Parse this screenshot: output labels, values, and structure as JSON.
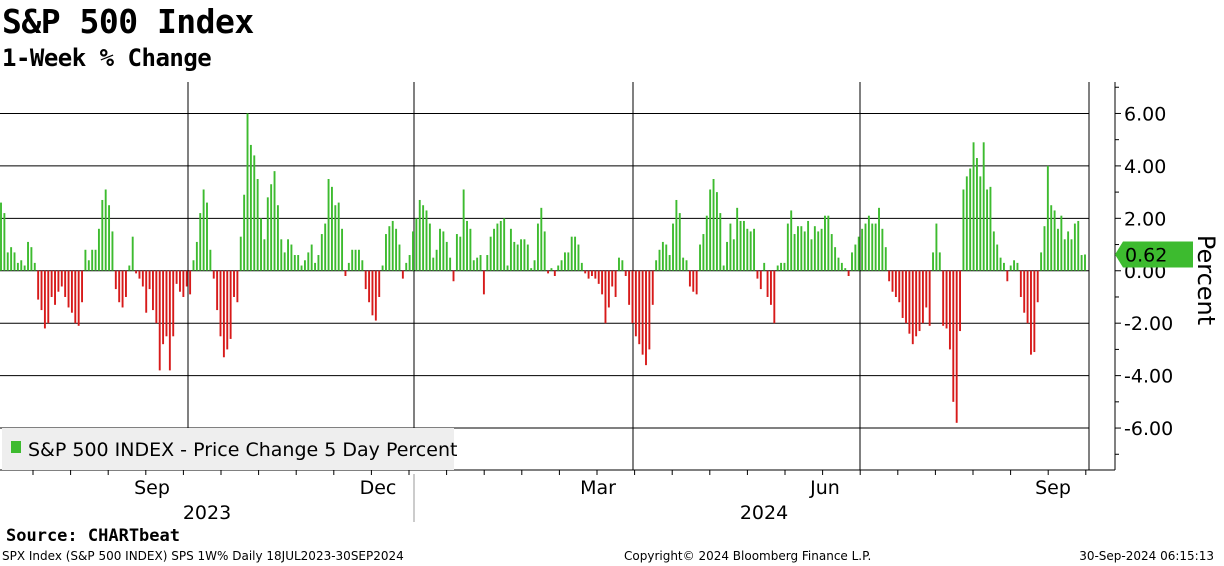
{
  "header": {
    "title": "S&P 500 Index",
    "subtitle": "1-Week % Change"
  },
  "footer": {
    "source": "Source:  CHARTbeat",
    "left": "SPX Index (S&P 500 INDEX) SPS 1W%  Daily 18JUL2023-30SEP2024",
    "middle": "Copyright© 2024 Bloomberg Finance L.P.",
    "right": "30-Sep-2024 06:15:13"
  },
  "colors": {
    "positive": "#3dbb2f",
    "negative": "#d71a1a",
    "grid": "#000000",
    "legend_bg": "#eeeeee",
    "badge": "#3dbb2f"
  },
  "chart_data": {
    "type": "bar",
    "ylabel": "Percent",
    "ylim": [
      -7.6,
      7.2
    ],
    "y_ticks": [
      6.0,
      4.0,
      2.0,
      0.0,
      -2.0,
      -4.0,
      -6.0
    ],
    "y_tick_labels": [
      "6.00",
      "4.00",
      "2.00",
      "0.00",
      "-2.00",
      "-4.00",
      "-6.00"
    ],
    "x_tick_labels": [
      "Sep",
      "Dec",
      "Mar",
      "Jun",
      "Sep"
    ],
    "year_labels": [
      "2023",
      "2024"
    ],
    "legend": [
      "S&P 500 INDEX - Price Change 5 Day Percent"
    ],
    "legend_position": "bottom-left",
    "last_value": "0.62",
    "series": [
      {
        "name": "S&P 500 INDEX - Price Change 5 Day Percent",
        "values": [
          2.6,
          2.2,
          0.7,
          0.9,
          0.7,
          0.3,
          0.4,
          0.2,
          1.1,
          0.9,
          0.3,
          -1.1,
          -1.5,
          -2.2,
          -2.0,
          -1.0,
          -1.3,
          -0.8,
          -0.6,
          -1.0,
          -1.4,
          -1.6,
          -2.0,
          -2.1,
          -1.2,
          0.8,
          0.4,
          0.8,
          0.8,
          1.6,
          2.7,
          3.1,
          2.5,
          1.5,
          -0.7,
          -1.2,
          -1.4,
          -1.0,
          0.2,
          1.3,
          -0.1,
          -0.3,
          -0.6,
          -1.6,
          -0.7,
          -1.5,
          -2.0,
          -3.8,
          -2.8,
          -2.5,
          -3.8,
          -2.5,
          -0.5,
          -0.8,
          -1.0,
          -0.6,
          -0.9,
          0.4,
          1.1,
          2.2,
          3.1,
          2.6,
          0.8,
          -0.3,
          -1.5,
          -2.5,
          -3.3,
          -3.0,
          -2.6,
          -1.0,
          -1.2,
          1.3,
          2.9,
          6.0,
          4.8,
          4.4,
          3.5,
          2.0,
          1.2,
          2.8,
          3.3,
          3.8,
          2.5,
          1.2,
          0.7,
          1.2,
          1.0,
          0.6,
          0.6,
          0.2,
          0.4,
          0.7,
          1.0,
          0.3,
          0.6,
          1.4,
          1.8,
          3.5,
          3.2,
          2.5,
          2.6,
          1.6,
          -0.2,
          0.3,
          0.8,
          0.8,
          0.8,
          0.4,
          -0.7,
          -1.2,
          -1.7,
          -1.9,
          -1.0,
          0.2,
          1.4,
          1.7,
          1.9,
          1.6,
          1.0,
          -0.3,
          0.3,
          0.6,
          1.5,
          2.0,
          2.7,
          2.5,
          2.3,
          1.8,
          0.5,
          0.8,
          1.6,
          1.5,
          1.1,
          0.5,
          -0.4,
          1.4,
          1.3,
          3.1,
          1.9,
          1.6,
          0.4,
          0.5,
          0.6,
          -0.9,
          0.6,
          1.3,
          1.6,
          1.8,
          1.9,
          2.0,
          0.2,
          1.6,
          1.1,
          1.0,
          1.2,
          1.2,
          1.0,
          0.1,
          0.4,
          1.8,
          2.4,
          1.5,
          -0.1,
          0.1,
          -0.2,
          0.2,
          0.4,
          0.7,
          0.7,
          1.3,
          1.3,
          1.0,
          0.3,
          -0.1,
          -0.3,
          -0.2,
          -0.3,
          -0.5,
          -0.9,
          -2.0,
          -1.4,
          -0.6,
          -1.0,
          0.5,
          0.4,
          -0.2,
          -1.3,
          -2.0,
          -2.5,
          -2.8,
          -3.2,
          -3.6,
          -3.0,
          -1.3,
          0.4,
          0.8,
          1.1,
          1.0,
          0.6,
          1.8,
          2.7,
          2.2,
          0.5,
          0.4,
          -0.6,
          -0.8,
          -0.9,
          1.0,
          1.4,
          2.1,
          3.1,
          3.5,
          3.0,
          2.2,
          0.2,
          1.1,
          1.8,
          1.2,
          2.4,
          1.9,
          1.9,
          1.6,
          1.5,
          1.6,
          -0.3,
          -0.7,
          0.3,
          -1.0,
          -1.3,
          -2.0,
          0.2,
          0.3,
          0.3,
          1.8,
          2.3,
          1.4,
          1.7,
          1.7,
          1.5,
          1.9,
          1.2,
          1.7,
          1.5,
          1.6,
          2.1,
          2.1,
          1.4,
          0.9,
          0.5,
          0.3,
          0.1,
          -0.2,
          0.7,
          1.0,
          1.3,
          1.6,
          1.8,
          2.1,
          1.8,
          1.8,
          2.4,
          1.6,
          0.9,
          -0.4,
          -0.8,
          -1.0,
          -1.2,
          -1.8,
          -2.0,
          -2.4,
          -2.8,
          -2.5,
          -2.3,
          -2.0,
          -1.4,
          -2.1,
          0.7,
          1.8,
          0.7,
          -2.1,
          -2.2,
          -3.0,
          -5.0,
          -5.8,
          -2.3,
          3.1,
          3.6,
          3.9,
          4.9,
          4.3,
          3.6,
          4.9,
          3.1,
          3.2,
          1.5,
          1.0,
          0.5,
          0.3,
          -0.4,
          0.2,
          0.4,
          0.3,
          -1.0,
          -1.6,
          -2.0,
          -3.2,
          -3.1,
          -1.2,
          0.7,
          1.7,
          4.0,
          2.5,
          2.3,
          1.6,
          2.1,
          1.2,
          1.5,
          1.2,
          1.8,
          1.9,
          0.6,
          0.62
        ]
      }
    ]
  }
}
